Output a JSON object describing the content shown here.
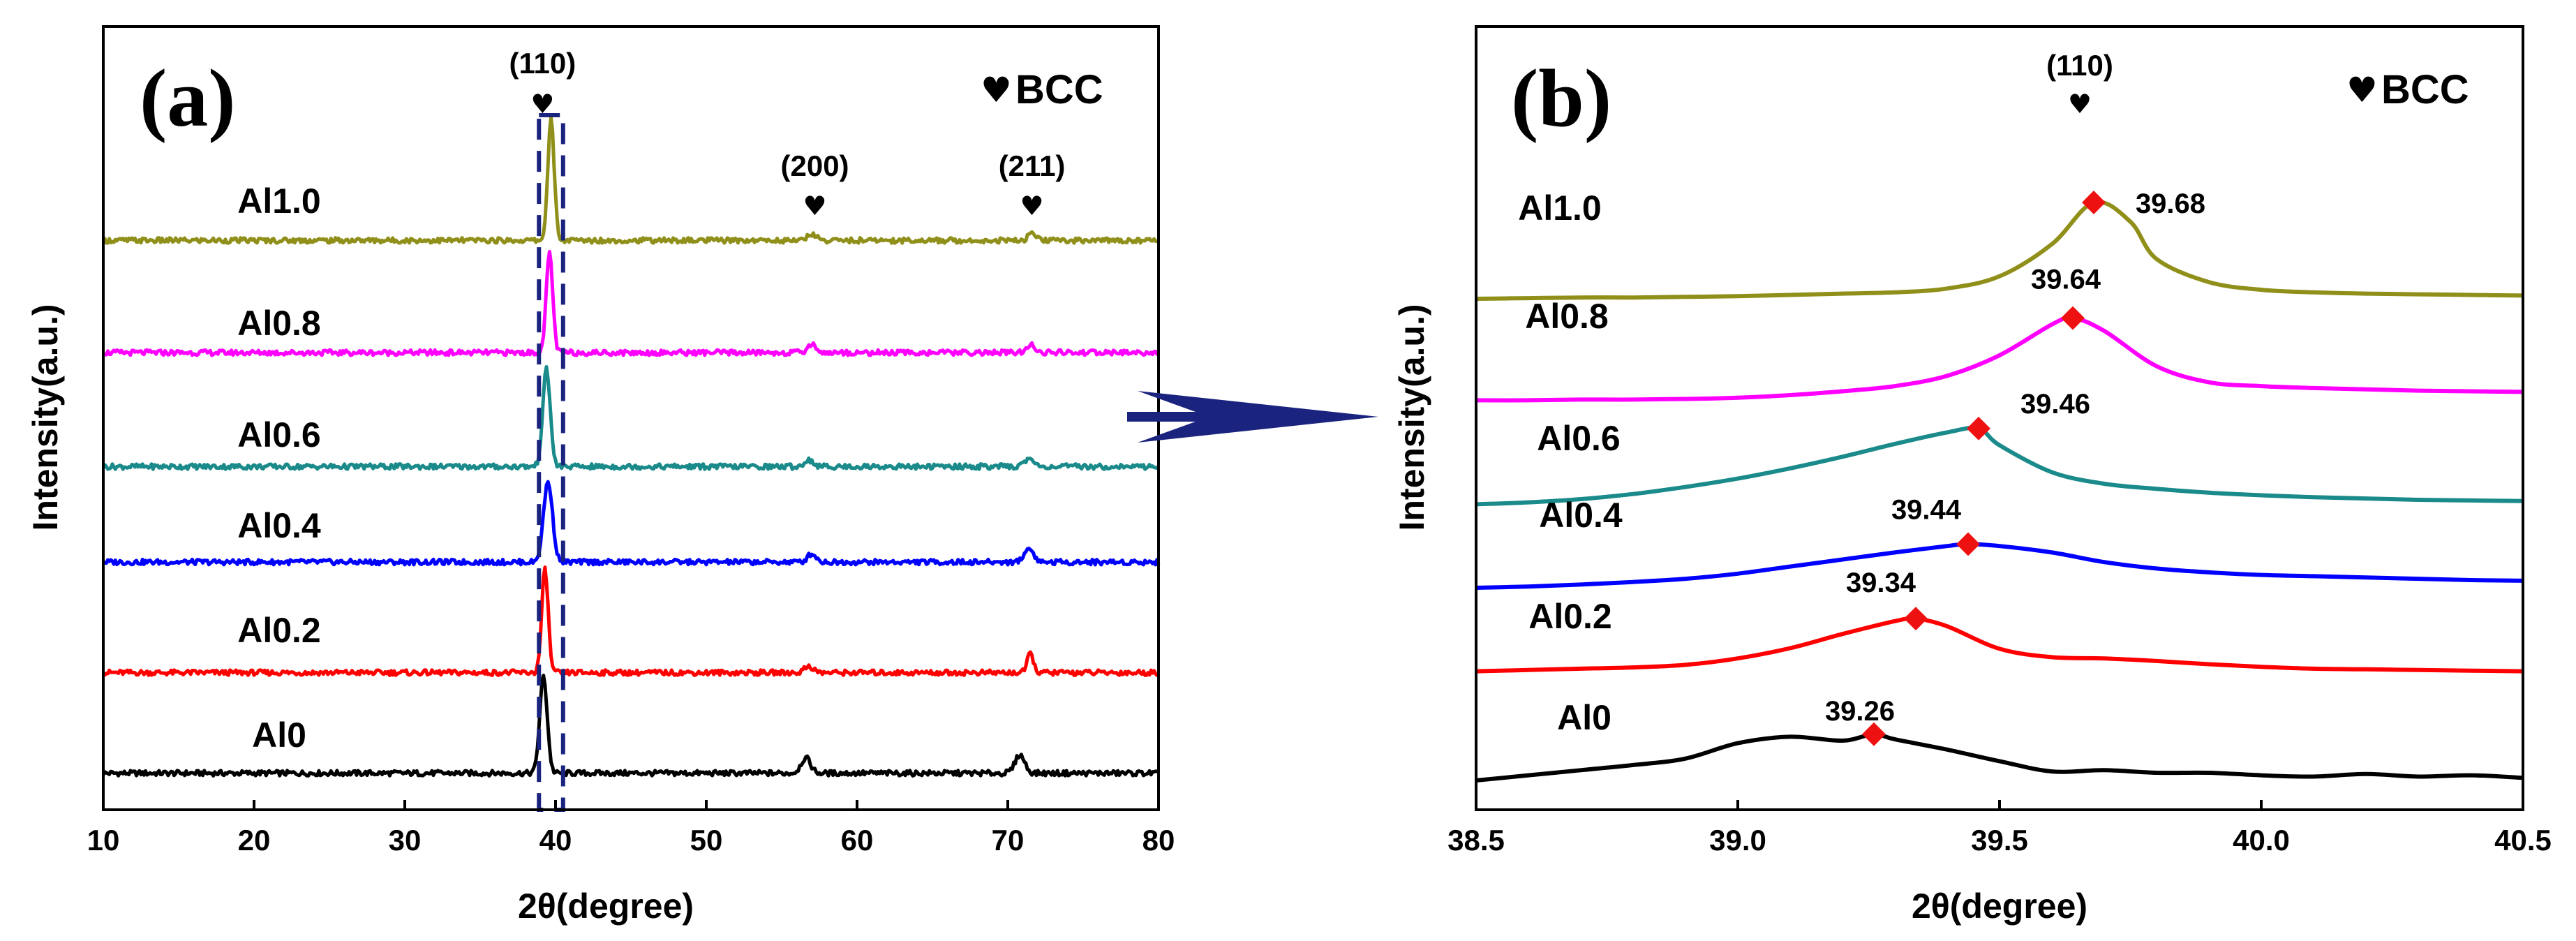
{
  "colors": {
    "Al0": "#000000",
    "Al0.2": "#ff0000",
    "Al0.4": "#0000ff",
    "Al0.6": "#1a8a8a",
    "Al0.8": "#ff00ff",
    "Al1.0": "#8f8f1a",
    "marker": "#ee1111",
    "arrow": "#1a237e",
    "box": "#1a237e"
  },
  "chart_data": [
    {
      "type": "line",
      "panel": "(a)",
      "xlabel": "2θ(degree)",
      "ylabel": "Intensity(a.u.)",
      "xlim": [
        10,
        80
      ],
      "xticks": [
        "10",
        "20",
        "30",
        "40",
        "50",
        "60",
        "70",
        "80"
      ],
      "legend": {
        "symbol": "♥",
        "label": "BCC",
        "position": "top-right"
      },
      "reflections": [
        {
          "hkl": "(110)",
          "two_theta": 39.6
        },
        {
          "hkl": "(200)",
          "two_theta": 57.2
        },
        {
          "hkl": "(211)",
          "two_theta": 71.6
        }
      ],
      "highlight_range": [
        38.9,
        40.5
      ],
      "series": [
        {
          "name": "Al0",
          "label": "Al0",
          "offset": 0,
          "baseline": 6,
          "peaks": [
            [
              39.2,
              58,
              0.35
            ],
            [
              56.6,
              9,
              0.45
            ],
            [
              70.8,
              11,
              0.45
            ]
          ]
        },
        {
          "name": "Al0.2",
          "label": "Al0.2",
          "offset": 60,
          "baseline": 6,
          "peaks": [
            [
              39.3,
              62,
              0.3
            ],
            [
              56.8,
              4,
              0.4
            ],
            [
              71.5,
              11,
              0.3
            ]
          ]
        },
        {
          "name": "Al0.4",
          "label": "Al0.4",
          "offset": 126,
          "baseline": 6,
          "peaks": [
            [
              39.5,
              48,
              0.42
            ],
            [
              57.0,
              5,
              0.4
            ],
            [
              71.4,
              8,
              0.45
            ]
          ]
        },
        {
          "name": "Al0.6",
          "label": "Al0.6",
          "offset": 183,
          "baseline": 6,
          "peaks": [
            [
              39.4,
              58,
              0.35
            ],
            [
              56.8,
              4,
              0.4
            ],
            [
              71.4,
              5,
              0.4
            ]
          ]
        },
        {
          "name": "Al0.8",
          "label": "Al0.8",
          "offset": 251,
          "baseline": 6,
          "peaks": [
            [
              39.6,
              60,
              0.3
            ],
            [
              57.0,
              5,
              0.4
            ],
            [
              71.6,
              5,
              0.35
            ]
          ]
        },
        {
          "name": "Al1.0",
          "label": "Al1.0",
          "offset": 318,
          "baseline": 6,
          "peaks": [
            [
              39.7,
              72,
              0.3
            ],
            [
              57.0,
              4,
              0.4
            ],
            [
              71.6,
              4,
              0.35
            ]
          ]
        }
      ],
      "annotation": "arrow from highlighted (110) region to panel (b)"
    },
    {
      "type": "line",
      "panel": "(b)",
      "xlabel": "2θ(degree)",
      "ylabel": "Intensity(a.u.)",
      "xlim": [
        38.5,
        40.5
      ],
      "xticks": [
        "38.5",
        "39.0",
        "39.5",
        "40.0",
        "40.5"
      ],
      "legend": {
        "symbol": "♥",
        "label": "BCC",
        "position": "top-right"
      },
      "reflection": {
        "hkl": "(110)",
        "two_theta": 39.68
      },
      "series": [
        {
          "name": "Al0",
          "label": "Al0",
          "peak_position": 39.26,
          "peak_label": "39.26",
          "x": [
            38.5,
            38.6,
            38.7,
            38.8,
            38.9,
            39.0,
            39.1,
            39.2,
            39.26,
            39.3,
            39.4,
            39.5,
            39.6,
            39.7,
            39.8,
            39.9,
            40.0,
            40.1,
            40.2,
            40.3,
            40.4,
            40.5
          ],
          "y": [
            0,
            8,
            16,
            24,
            34,
            58,
            68,
            62,
            72,
            64,
            48,
            30,
            14,
            16,
            12,
            12,
            8,
            6,
            10,
            6,
            8,
            4
          ]
        },
        {
          "name": "Al0.2",
          "label": "Al0.2",
          "peak_position": 39.34,
          "peak_label": "39.34",
          "x": [
            38.5,
            38.6,
            38.7,
            38.8,
            38.9,
            39.0,
            39.1,
            39.2,
            39.3,
            39.34,
            39.4,
            39.5,
            39.6,
            39.7,
            39.8,
            39.9,
            40.0,
            40.1,
            40.2,
            40.3,
            40.4,
            40.5
          ],
          "y": [
            170,
            172,
            174,
            176,
            180,
            190,
            206,
            228,
            248,
            252,
            240,
            205,
            192,
            190,
            186,
            181,
            177,
            174,
            173,
            172,
            171,
            170
          ]
        },
        {
          "name": "Al0.4",
          "label": "Al0.4",
          "peak_position": 39.44,
          "peak_label": "39.44",
          "x": [
            38.5,
            38.6,
            38.7,
            38.8,
            38.9,
            39.0,
            39.1,
            39.2,
            39.3,
            39.4,
            39.44,
            39.5,
            39.6,
            39.7,
            39.8,
            39.9,
            40.0,
            40.1,
            40.2,
            40.3,
            40.4,
            40.5
          ],
          "y": [
            300,
            302,
            305,
            309,
            314,
            322,
            333,
            344,
            355,
            365,
            368,
            365,
            355,
            340,
            330,
            324,
            320,
            318,
            316,
            314,
            312,
            311
          ]
        },
        {
          "name": "Al0.6",
          "label": "Al0.6",
          "peak_position": 39.46,
          "peak_label": "39.46",
          "x": [
            38.5,
            38.6,
            38.7,
            38.8,
            38.9,
            39.0,
            39.1,
            39.2,
            39.3,
            39.4,
            39.46,
            39.5,
            39.6,
            39.7,
            39.8,
            39.9,
            40.0,
            40.1,
            40.2,
            40.3,
            40.4,
            40.5
          ],
          "y": [
            430,
            433,
            438,
            446,
            457,
            470,
            486,
            504,
            524,
            542,
            548,
            522,
            480,
            462,
            454,
            448,
            444,
            441,
            439,
            437,
            436,
            435
          ]
        },
        {
          "name": "Al0.8",
          "label": "Al0.8",
          "peak_position": 39.64,
          "peak_label": "39.64",
          "x": [
            38.5,
            38.6,
            38.7,
            38.8,
            38.9,
            39.0,
            39.1,
            39.2,
            39.3,
            39.4,
            39.5,
            39.6,
            39.64,
            39.7,
            39.8,
            39.9,
            40.0,
            40.1,
            40.2,
            40.3,
            40.4,
            40.5
          ],
          "y": [
            592,
            592,
            593,
            593,
            594,
            596,
            600,
            606,
            614,
            630,
            662,
            710,
            720,
            700,
            645,
            620,
            614,
            611,
            609,
            607,
            606,
            605
          ]
        },
        {
          "name": "Al1.0",
          "label": "Al1.0",
          "peak_position": 39.68,
          "peak_label": "39.68",
          "x": [
            38.5,
            38.6,
            38.7,
            38.8,
            38.9,
            39.0,
            39.1,
            39.2,
            39.3,
            39.4,
            39.5,
            39.6,
            39.68,
            39.75,
            39.8,
            39.9,
            40.0,
            40.1,
            40.2,
            40.3,
            40.4,
            40.5
          ],
          "y": [
            750,
            751,
            752,
            752,
            753,
            754,
            756,
            758,
            760,
            766,
            785,
            835,
            900,
            870,
            812,
            776,
            764,
            760,
            758,
            757,
            756,
            755
          ]
        }
      ]
    }
  ]
}
